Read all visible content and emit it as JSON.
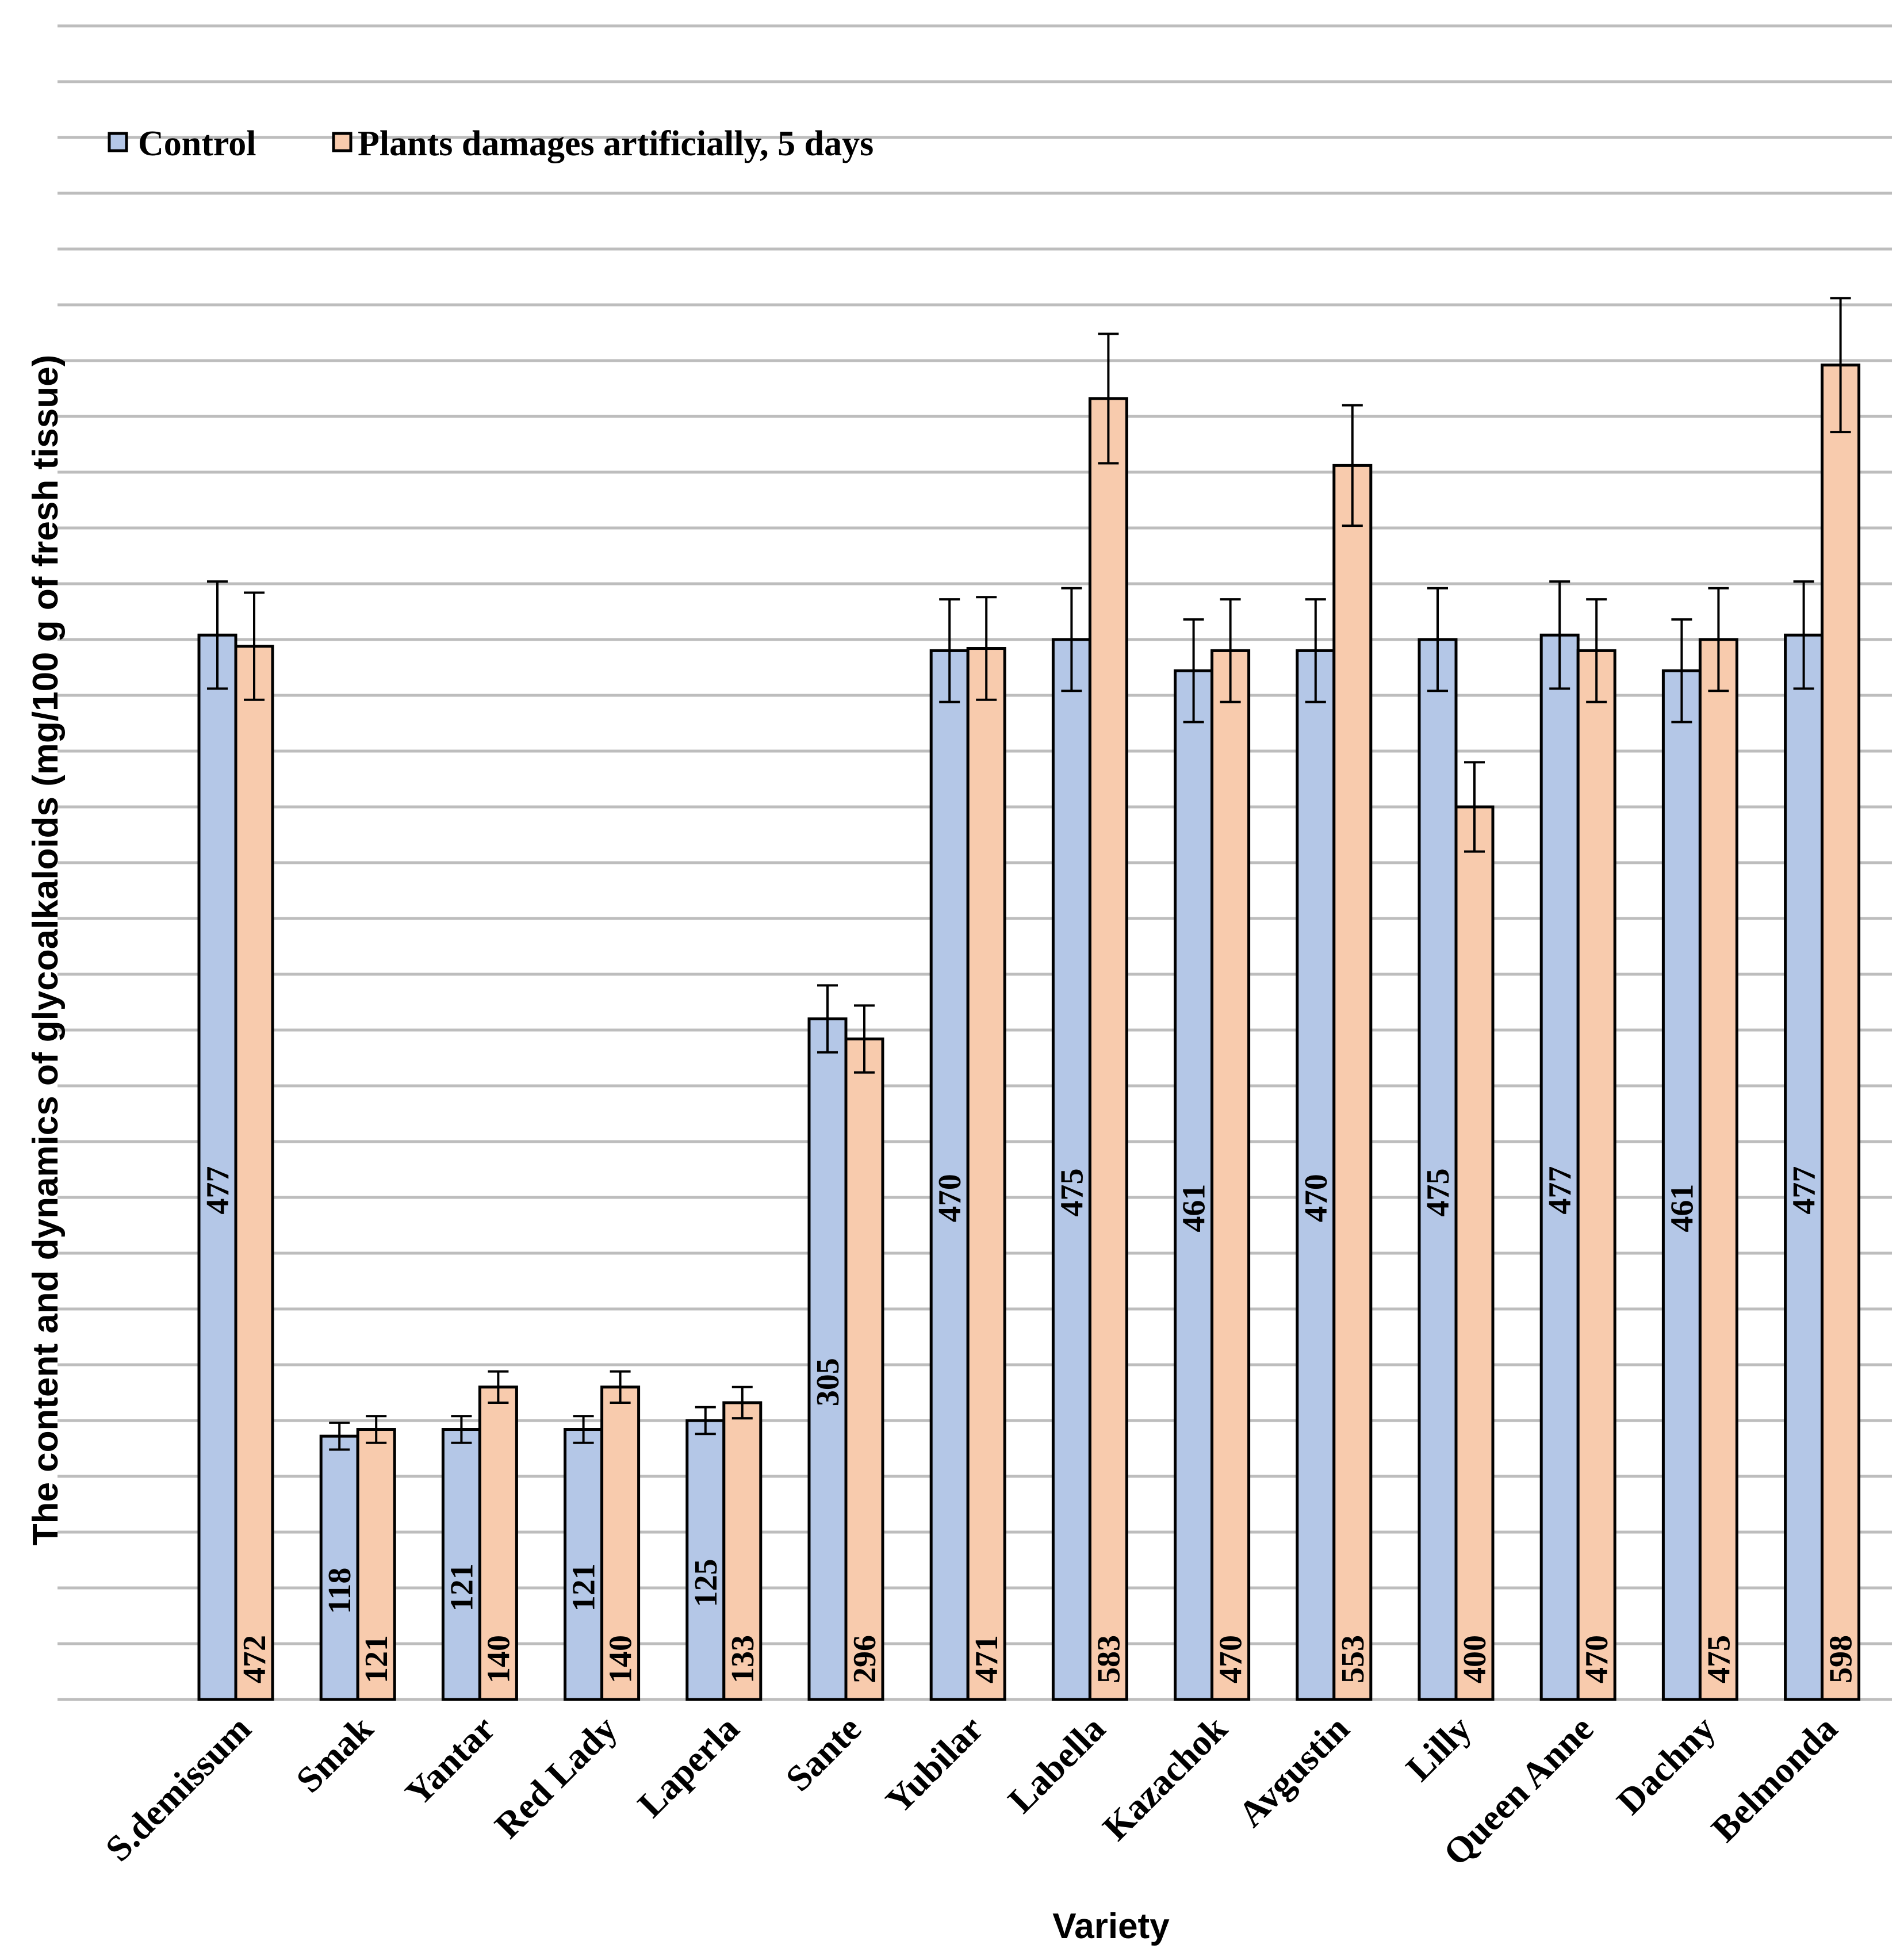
{
  "chart_data": {
    "type": "bar",
    "title": "",
    "xlabel": "Variety",
    "ylabel": "The content and dynamics of glycoalkaloids (mg/100 g of fresh tissue)",
    "legend_position": "top-left",
    "grid": true,
    "ylim": [
      0,
      750
    ],
    "categories": [
      "S.demissum",
      "Smak",
      "Yantar",
      "Red Lady",
      "Laperla",
      "Sante",
      "Yubilar",
      "Labella",
      "Kazachok",
      "Avgustin",
      "Lilly",
      "Queen Anne",
      "Dachny",
      "Belmonda"
    ],
    "series": [
      {
        "name": "Control",
        "color": "#b4c7e7",
        "values": [
          477,
          118,
          121,
          121,
          125,
          305,
          470,
          475,
          461,
          470,
          475,
          477,
          461,
          477
        ],
        "errors": [
          24,
          6,
          6,
          6,
          6,
          15,
          23,
          23,
          23,
          23,
          23,
          24,
          23,
          24
        ]
      },
      {
        "name": "Plants damages artificially, 5 days",
        "color": "#f8cbad",
        "values": [
          472,
          121,
          140,
          140,
          133,
          296,
          471,
          583,
          470,
          553,
          400,
          470,
          475,
          598
        ],
        "errors": [
          24,
          6,
          7,
          7,
          7,
          15,
          23,
          29,
          23,
          27,
          20,
          23,
          23,
          30
        ]
      }
    ]
  }
}
